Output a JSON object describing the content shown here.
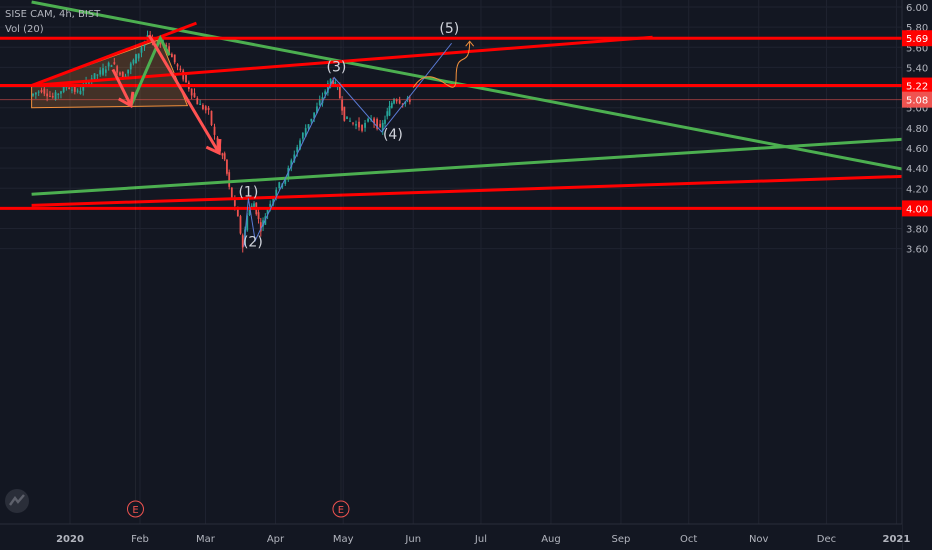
{
  "header": {
    "symbol": "SISE CAM, 4h, BIST",
    "indicator": "Vol (20)"
  },
  "chart_data": {
    "type": "candlestick",
    "title": "SISE CAM, 4h, BIST",
    "ylim": [
      3.5,
      6.05
    ],
    "y_ticks": [
      3.6,
      3.8,
      4.0,
      4.2,
      4.4,
      4.6,
      4.8,
      5.0,
      5.2,
      5.4,
      5.6,
      5.8,
      6.0
    ],
    "y_tick_labels": [
      "3.60",
      "3.80",
      "4.00",
      "4.20",
      "4.40",
      "4.60",
      "4.80",
      "5.00",
      "5.20",
      "5.40",
      "5.60",
      "5.80",
      "6.00"
    ],
    "x_ticks": [
      "2020",
      "Feb",
      "Mar",
      "Apr",
      "May",
      "Jun",
      "Jul",
      "Aug",
      "Sep",
      "Oct",
      "Nov",
      "Dec",
      "2021"
    ],
    "x_tick_dates": [
      "2020-01-01",
      "2020-02-01",
      "2020-03-01",
      "2020-04-01",
      "2020-05-01",
      "2020-06-01",
      "2020-07-01",
      "2020-08-01",
      "2020-09-01",
      "2020-10-01",
      "2020-11-01",
      "2020-12-01",
      "2021-01-01"
    ],
    "price_path": [
      [
        "2019-12-15",
        5.12
      ],
      [
        "2019-12-20",
        5.18
      ],
      [
        "2019-12-25",
        5.1
      ],
      [
        "2019-12-31",
        5.22
      ],
      [
        "2020-01-05",
        5.15
      ],
      [
        "2020-01-10",
        5.28
      ],
      [
        "2020-01-15",
        5.35
      ],
      [
        "2020-01-20",
        5.45
      ],
      [
        "2020-01-25",
        5.3
      ],
      [
        "2020-02-01",
        5.55
      ],
      [
        "2020-02-05",
        5.72
      ],
      [
        "2020-02-08",
        5.62
      ],
      [
        "2020-02-12",
        5.65
      ],
      [
        "2020-02-17",
        5.45
      ],
      [
        "2020-02-22",
        5.25
      ],
      [
        "2020-02-27",
        5.05
      ],
      [
        "2020-03-03",
        4.95
      ],
      [
        "2020-03-07",
        4.6
      ],
      [
        "2020-03-10",
        4.48
      ],
      [
        "2020-03-12",
        4.2
      ],
      [
        "2020-03-16",
        3.9
      ],
      [
        "2020-03-18",
        3.62
      ],
      [
        "2020-03-20",
        3.95
      ],
      [
        "2020-03-23",
        4.05
      ],
      [
        "2020-03-26",
        3.8
      ],
      [
        "2020-03-29",
        4.0
      ],
      [
        "2020-04-02",
        4.2
      ],
      [
        "2020-04-06",
        4.3
      ],
      [
        "2020-04-10",
        4.55
      ],
      [
        "2020-04-15",
        4.8
      ],
      [
        "2020-04-20",
        5.0
      ],
      [
        "2020-04-26",
        5.28
      ],
      [
        "2020-04-29",
        5.2
      ],
      [
        "2020-05-02",
        4.9
      ],
      [
        "2020-05-06",
        4.85
      ],
      [
        "2020-05-10",
        4.8
      ],
      [
        "2020-05-14",
        4.9
      ],
      [
        "2020-05-18",
        4.78
      ],
      [
        "2020-05-21",
        4.95
      ],
      [
        "2020-05-24",
        5.1
      ],
      [
        "2020-05-28",
        5.05
      ],
      [
        "2020-05-31",
        5.08
      ]
    ],
    "volume_markers": [
      {
        "date": "2020-01-30",
        "label": "E"
      },
      {
        "date": "2020-04-30",
        "label": "E"
      }
    ],
    "horizontal_levels": [
      {
        "value": 5.69,
        "label": "5.69",
        "color": "#ff0000"
      },
      {
        "value": 5.22,
        "label": "5.22",
        "color": "#ff0000"
      },
      {
        "value": 4.0,
        "label": "4.00",
        "color": "#ff0000"
      }
    ],
    "last_price": {
      "value": 5.08,
      "label": "5.08",
      "color": "#ef5350"
    },
    "trendlines": [
      {
        "color": "#4caf50",
        "from": [
          "2019-12-15",
          6.05
        ],
        "to": [
          "2021-01-20",
          4.32
        ]
      },
      {
        "color": "#4caf50",
        "from": [
          "2019-12-15",
          4.14
        ],
        "to": [
          "2021-01-20",
          4.71
        ]
      },
      {
        "color": "#ff0000",
        "from": [
          "2019-12-15",
          4.03
        ],
        "to": [
          "2021-01-20",
          4.33
        ]
      },
      {
        "color": "#ff0000",
        "from": [
          "2019-12-15",
          5.22
        ],
        "to": [
          "2020-09-15",
          5.7
        ]
      },
      {
        "color": "#ff0000",
        "from": [
          "2019-12-15",
          5.22
        ],
        "to": [
          "2020-02-26",
          5.84
        ]
      }
    ],
    "wave_labels": [
      {
        "label": "(1)",
        "date": "2020-03-20",
        "value": 4.12
      },
      {
        "label": "(2)",
        "date": "2020-03-22",
        "value": 3.62
      },
      {
        "label": "(3)",
        "date": "2020-04-28",
        "value": 5.36
      },
      {
        "label": "(4)",
        "date": "2020-05-23",
        "value": 4.69
      },
      {
        "label": "(5)",
        "date": "2020-06-17",
        "value": 5.74
      }
    ],
    "wave_path": [
      [
        "2020-03-18",
        3.62
      ],
      [
        "2020-03-20",
        4.1
      ],
      [
        "2020-03-23",
        3.68
      ],
      [
        "2020-04-27",
        5.3
      ],
      [
        "2020-05-18",
        4.76
      ],
      [
        "2020-06-18",
        5.64
      ]
    ],
    "arrows": [
      {
        "from": [
          "2020-02-05",
          5.72
        ],
        "to": [
          "2020-03-07",
          4.55
        ]
      },
      {
        "from": [
          "2020-01-20",
          5.38
        ],
        "to": [
          "2020-01-28",
          5.02
        ]
      }
    ],
    "projection": [
      [
        "2020-06-01",
        5.2
      ],
      [
        "2020-06-10",
        5.22
      ],
      [
        "2020-06-20",
        5.3
      ],
      [
        "2020-06-26",
        5.66
      ]
    ]
  }
}
